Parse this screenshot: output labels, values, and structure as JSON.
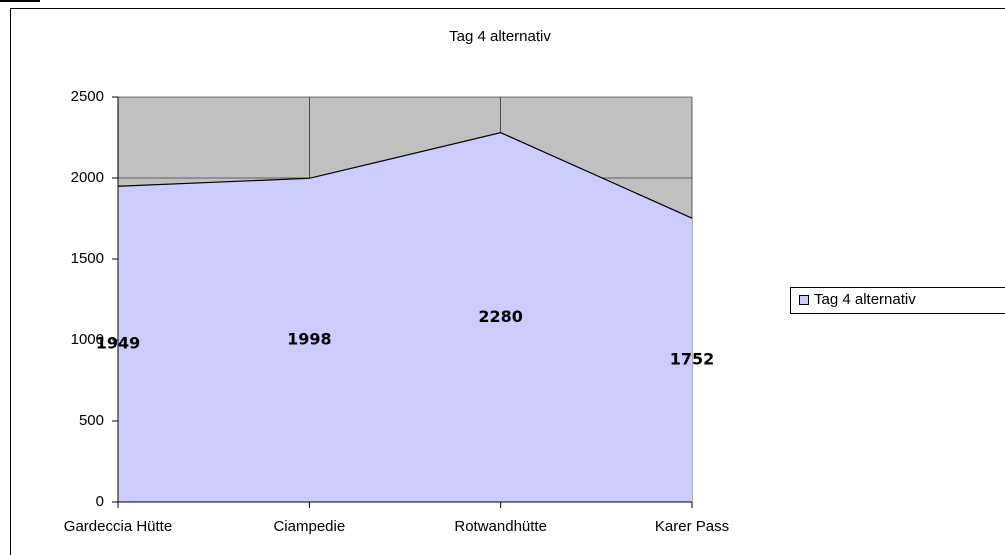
{
  "chart_data": {
    "type": "area",
    "title": "Tag 4 alternativ",
    "categories": [
      "Gardeccia Hütte",
      "Ciampedie",
      "Rotwandhütte",
      "Karer Pass"
    ],
    "series": [
      {
        "name": "Tag 4 alternativ",
        "color": "#ccccff",
        "values": [
          1949,
          1998,
          2280,
          1752
        ]
      }
    ],
    "ylim": [
      0,
      2500
    ],
    "yticks": [
      0,
      500,
      1000,
      1500,
      2000,
      2500
    ],
    "grid": true,
    "legend": "right",
    "plot_background": "#c0c0c0"
  }
}
